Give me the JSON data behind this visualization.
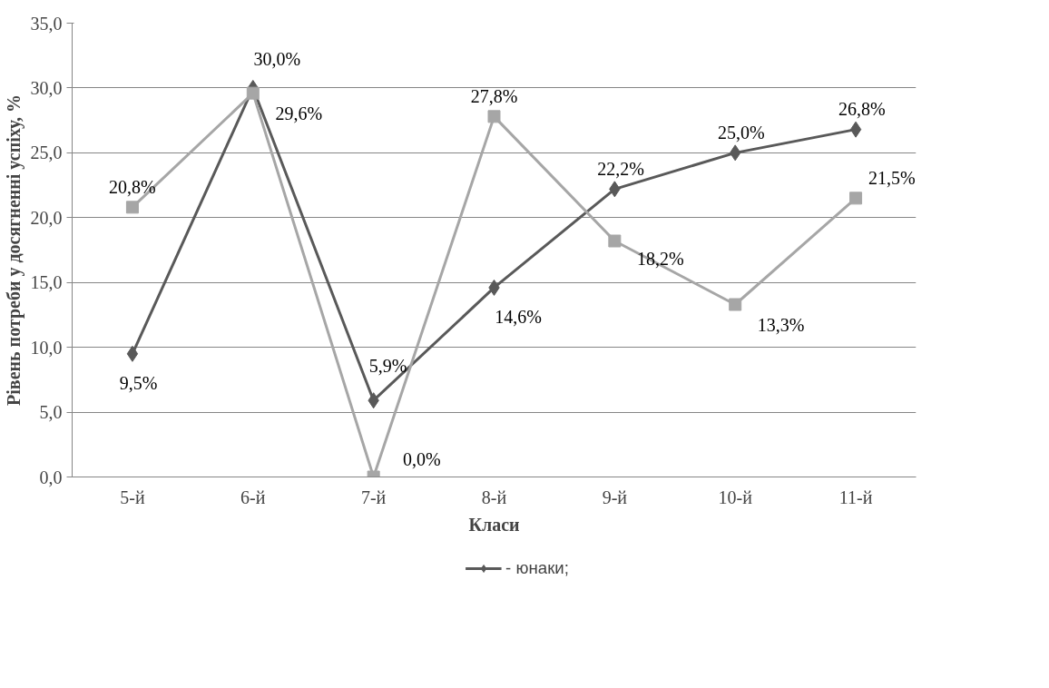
{
  "chart_data": {
    "type": "line",
    "xlabel": "Класи",
    "ylabel": "Рівень потреби у досягненні успіху, %",
    "categories": [
      "5-й",
      "6-й",
      "7-й",
      "8-й",
      "9-й",
      "10-й",
      "11-й"
    ],
    "series": [
      {
        "name": "- юнаки;",
        "color": "#595959",
        "marker": "diamond",
        "values": [
          9.5,
          30.0,
          5.9,
          14.6,
          22.2,
          25.0,
          26.8
        ],
        "value_labels": [
          "9,5%",
          "30,0%",
          "5,9%",
          "14,6%",
          "22,2%",
          "25,0%",
          "26,8%"
        ]
      },
      {
        "color": "#a6a6a6",
        "marker": "square",
        "values": [
          20.8,
          29.6,
          0.0,
          27.8,
          18.2,
          13.3,
          21.5
        ],
        "value_labels": [
          "20,8%",
          "29,6%",
          "0,0%",
          "27,8%",
          "18,2%",
          "13,3%",
          "21,5%"
        ]
      }
    ],
    "ylim": [
      0,
      35
    ],
    "yticks": [
      {
        "value": 0,
        "label": "0,0"
      },
      {
        "value": 5,
        "label": "5,0"
      },
      {
        "value": 10,
        "label": "10,0"
      },
      {
        "value": 15,
        "label": "15,0"
      },
      {
        "value": 20,
        "label": "20,0"
      },
      {
        "value": 25,
        "label": "25,0"
      },
      {
        "value": 30,
        "label": "30,0"
      },
      {
        "value": 35,
        "label": "35,0"
      }
    ],
    "grid": "y",
    "legend": "bottom",
    "line_style": "solid"
  }
}
